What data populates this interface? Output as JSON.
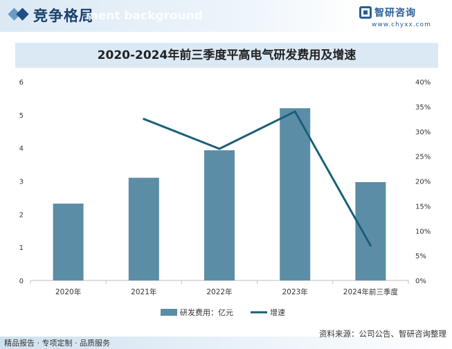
{
  "header": {
    "title": "竞争格局",
    "watermark_text": "ment background",
    "logo_name": "智研咨询",
    "logo_url": "www.chyxx.com"
  },
  "footer": {
    "left_text": "精品报告 · 专项定制 · 品质服务",
    "source": "资料来源：公司公告、智研咨询整理"
  },
  "colors": {
    "bar": "#5b8ea6",
    "line": "#1a5f7a",
    "title_band": "#dbe9f5"
  },
  "chart_data": {
    "type": "bar",
    "title": "2020-2024年前三季度平高电气研发费用及增速",
    "categories": [
      "2020年",
      "2021年",
      "2022年",
      "2023年",
      "2024年前三季度"
    ],
    "series": [
      {
        "name": "研发费用：亿元",
        "type": "bar",
        "axis": "left",
        "values": [
          2.32,
          3.1,
          3.93,
          5.2,
          2.97
        ]
      },
      {
        "name": "增速",
        "type": "line",
        "axis": "right",
        "values": [
          null,
          32.5,
          26.5,
          34.0,
          7.0
        ]
      }
    ],
    "y_left": {
      "min": 0,
      "max": 6,
      "ticks": [
        "0",
        "1",
        "2",
        "3",
        "4",
        "5",
        "6"
      ]
    },
    "y_right": {
      "min": 0,
      "max": 40,
      "ticks": [
        "0%",
        "5%",
        "10%",
        "15%",
        "20%",
        "25%",
        "30%",
        "35%",
        "40%"
      ]
    },
    "grid": false,
    "legend": "bottom"
  }
}
